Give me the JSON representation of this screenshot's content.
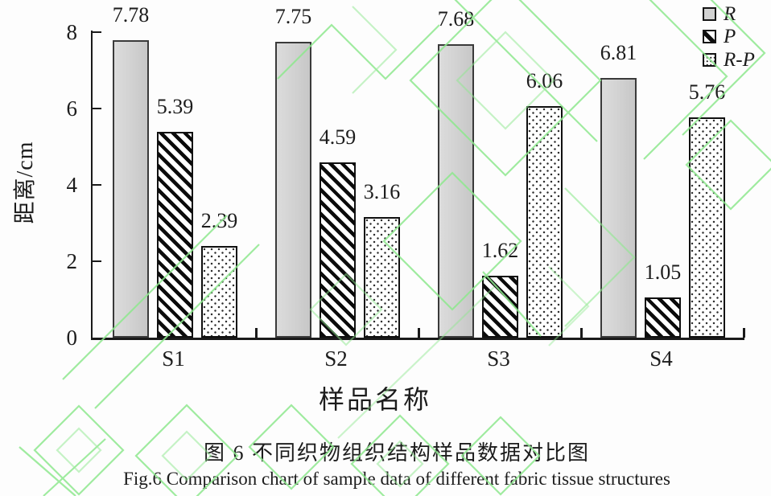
{
  "figure": {
    "caption_zh": "图 6  不同织物组织结构样品数据对比图",
    "caption_en": "Fig.6 Comparison chart of sample data of different fabric tissue structures"
  },
  "chart_data": {
    "type": "bar",
    "title": "",
    "xlabel": "样品名称",
    "ylabel": "距离/cm",
    "categories": [
      "S1",
      "S2",
      "S3",
      "S4"
    ],
    "series": [
      {
        "name": "R",
        "pattern": "solid-gray",
        "values": [
          7.78,
          7.75,
          7.68,
          6.81
        ]
      },
      {
        "name": "P",
        "pattern": "diagonal-hatch",
        "values": [
          5.39,
          4.59,
          1.62,
          1.05
        ]
      },
      {
        "name": "R-P",
        "pattern": "dots",
        "values": [
          2.39,
          3.16,
          6.06,
          5.76
        ]
      }
    ],
    "ylim": [
      0,
      8
    ],
    "yticks": [
      0,
      2,
      4,
      6,
      8
    ],
    "grid": false,
    "value_labels": true,
    "legend_position": "top-right"
  },
  "colors": {
    "bar_gray_fill": "#d2d2d2",
    "bar_border": "#101010",
    "axis": "#1a1a1a",
    "text": "#1c1c1c",
    "watermark_green": "#8ee88e"
  }
}
